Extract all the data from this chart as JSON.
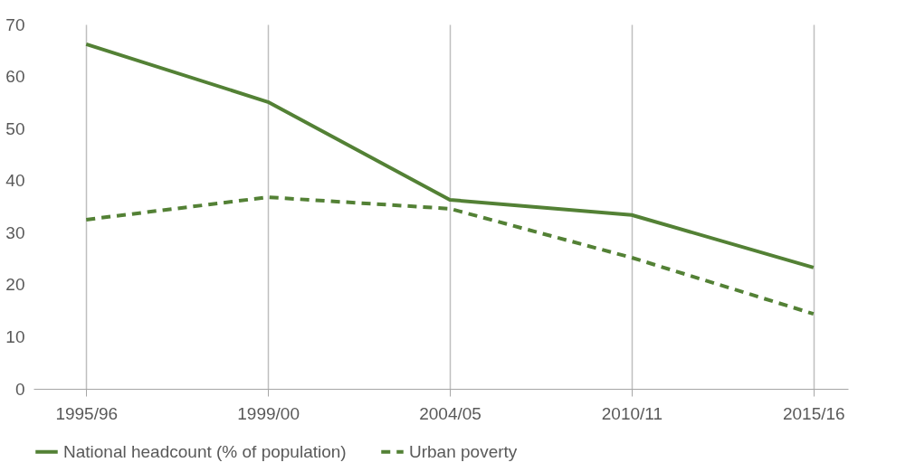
{
  "chart_data": {
    "type": "line",
    "categories": [
      "1995/96",
      "1999/00",
      "2004/05",
      "2010/11",
      "2015/16"
    ],
    "series": [
      {
        "name": "National headcount (% of population)",
        "color": "#538135",
        "line_style": "solid",
        "values": [
          66.2,
          55.1,
          36.3,
          33.4,
          23.3
        ]
      },
      {
        "name": "Urban poverty",
        "color": "#538135",
        "line_style": "dashed",
        "values": [
          32.5,
          36.8,
          34.6,
          25.2,
          14.4
        ]
      }
    ],
    "ylim": [
      0,
      70
    ],
    "yticks": [
      0,
      10,
      20,
      30,
      40,
      50,
      60,
      70
    ],
    "grid": "x",
    "legend": "bottom",
    "marker": "none"
  }
}
